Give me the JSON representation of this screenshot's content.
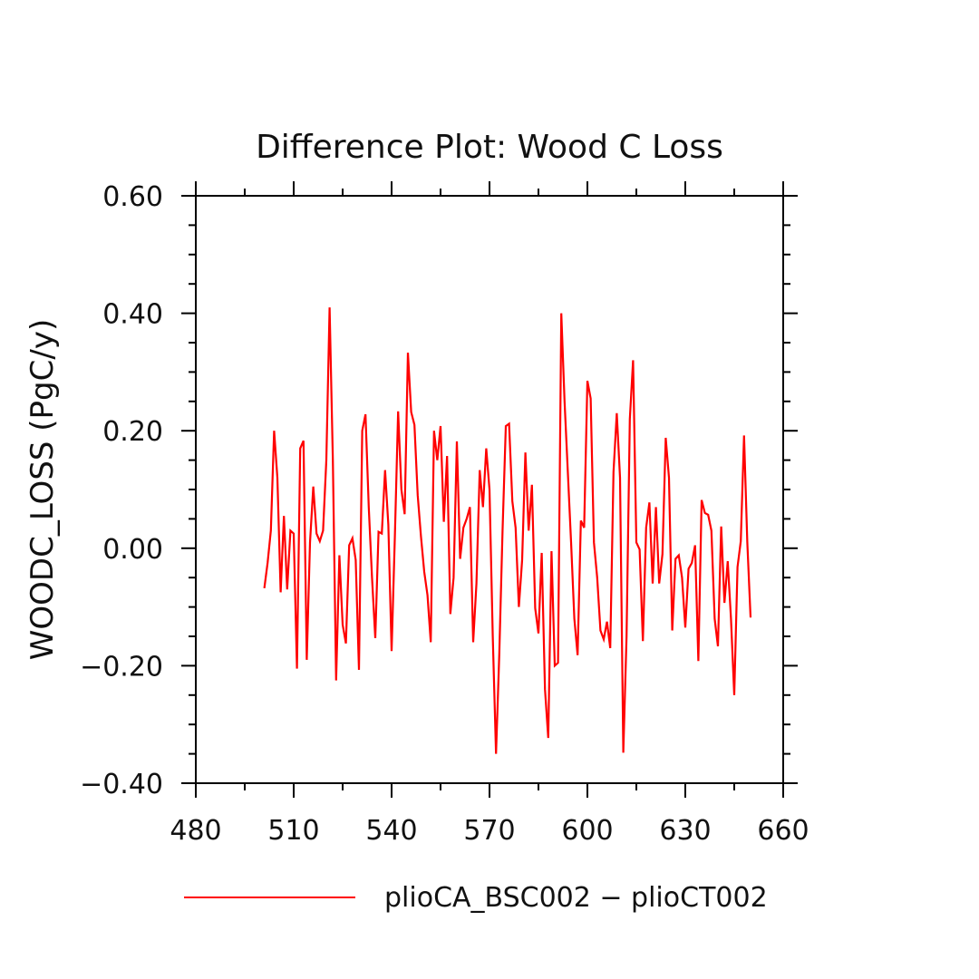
{
  "chart_data": {
    "type": "line",
    "title": "Difference Plot: Wood C Loss",
    "xlabel": "",
    "ylabel": "WOODC_LOSS (PgC/y)",
    "xlim": [
      480,
      660
    ],
    "ylim": [
      -0.4,
      0.6
    ],
    "xticks": [
      480,
      510,
      540,
      570,
      600,
      630,
      660
    ],
    "xtick_labels": [
      "480",
      "510",
      "540",
      "570",
      "600",
      "630",
      "660"
    ],
    "yticks": [
      -0.4,
      -0.2,
      0.0,
      0.2,
      0.4,
      0.6
    ],
    "ytick_labels": [
      "−0.40",
      "−0.20",
      "0.00",
      "0.20",
      "0.40",
      "0.60"
    ],
    "grid": false,
    "legend_position": "bottom",
    "series": [
      {
        "name": "plioCA_BSC002 − plioCT002",
        "color": "#ff0000",
        "x": [
          501,
          502,
          503,
          504,
          505,
          506,
          507,
          508,
          509,
          510,
          511,
          512,
          513,
          514,
          515,
          516,
          517,
          518,
          519,
          520,
          521,
          522,
          523,
          524,
          525,
          526,
          527,
          528,
          529,
          530,
          531,
          532,
          533,
          534,
          535,
          536,
          537,
          538,
          539,
          540,
          541,
          542,
          543,
          544,
          545,
          546,
          547,
          548,
          549,
          550,
          551,
          552,
          553,
          554,
          555,
          556,
          557,
          558,
          559,
          560,
          561,
          562,
          563,
          564,
          565,
          566,
          567,
          568,
          569,
          570,
          571,
          572,
          573,
          574,
          575,
          576,
          577,
          578,
          579,
          580,
          581,
          582,
          583,
          584,
          585,
          586,
          587,
          588,
          589,
          590,
          591,
          592,
          593,
          594,
          595,
          596,
          597,
          598,
          599,
          600,
          601,
          602,
          603,
          604,
          605,
          606,
          607,
          608,
          609,
          610,
          611,
          612,
          613,
          614,
          615,
          616,
          617,
          618,
          619,
          620,
          621,
          622,
          623,
          624,
          625,
          626,
          627,
          628,
          629,
          630,
          631,
          632,
          633,
          634,
          635,
          636,
          637,
          638,
          639,
          640,
          641,
          642,
          643,
          644,
          645,
          646,
          647,
          648,
          649,
          650
        ],
        "y": [
          -0.068,
          -0.025,
          0.03,
          0.2,
          0.12,
          -0.075,
          0.055,
          -0.07,
          0.03,
          0.025,
          -0.205,
          0.17,
          0.183,
          -0.19,
          0.01,
          0.105,
          0.025,
          0.012,
          0.03,
          0.15,
          0.41,
          0.15,
          -0.225,
          -0.012,
          -0.13,
          -0.162,
          0.005,
          0.017,
          -0.02,
          -0.207,
          0.2,
          0.228,
          0.07,
          -0.05,
          -0.153,
          0.028,
          0.025,
          0.133,
          0.04,
          -0.175,
          0.02,
          0.233,
          0.1,
          0.058,
          0.333,
          0.232,
          0.21,
          0.09,
          0.02,
          -0.04,
          -0.08,
          -0.16,
          0.2,
          0.15,
          0.208,
          0.045,
          0.157,
          -0.112,
          -0.05,
          0.182,
          -0.018,
          0.035,
          0.05,
          0.07,
          -0.16,
          -0.06,
          0.133,
          0.07,
          0.17,
          0.1,
          -0.15,
          -0.35,
          -0.18,
          0.03,
          0.208,
          0.212,
          0.08,
          0.035,
          -0.1,
          -0.02,
          0.163,
          0.03,
          0.108,
          -0.102,
          -0.145,
          -0.008,
          -0.24,
          -0.323,
          -0.005,
          -0.2,
          -0.195,
          0.4,
          0.25,
          0.13,
          0.01,
          -0.12,
          -0.182,
          0.047,
          0.035,
          0.285,
          0.255,
          0.01,
          -0.05,
          -0.14,
          -0.155,
          -0.125,
          -0.17,
          0.13,
          0.23,
          0.12,
          -0.348,
          -0.15,
          0.22,
          0.32,
          0.01,
          -0.002,
          -0.158,
          0.035,
          0.078,
          -0.06,
          0.07,
          -0.06,
          -0.01,
          0.188,
          0.12,
          -0.14,
          -0.018,
          -0.012,
          -0.05,
          -0.135,
          -0.035,
          -0.025,
          0.005,
          -0.192,
          0.082,
          0.06,
          0.057,
          0.03,
          -0.12,
          -0.167,
          0.037,
          -0.093,
          -0.022,
          -0.12,
          -0.25,
          -0.032,
          0.012,
          0.192,
          0.01,
          -0.118
        ]
      }
    ]
  }
}
